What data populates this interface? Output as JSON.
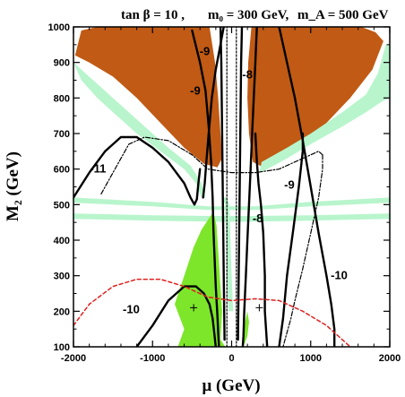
{
  "chart_data": {
    "type": "contour",
    "title": "tan β = 10 ,  m₀ = 300 GeV,  m_A = 500 GeV",
    "title_parts": {
      "tanb": "tan β = 10 ,",
      "m0": "m₀ = 300 GeV,",
      "mA": "m_A = 500 GeV"
    },
    "xlabel": "μ (GeV)",
    "ylabel": "M₂ (GeV)",
    "xlim": [
      -2000,
      2000
    ],
    "ylim": [
      100,
      1000
    ],
    "xticks": [
      -2000,
      -1000,
      0,
      1000,
      2000
    ],
    "xtick_labels": [
      "-2000",
      "-1000",
      "0",
      "1000",
      "2000"
    ],
    "yticks": [
      100,
      200,
      300,
      400,
      500,
      600,
      700,
      800,
      900,
      1000
    ],
    "ytick_labels": [
      "100",
      "200",
      "300",
      "400",
      "500",
      "600",
      "700",
      "800",
      "900",
      "1000"
    ],
    "colors": {
      "excluded_brown": "#c05a14",
      "wmap_lightgreen": "#b8f5cc",
      "bsg_green": "#7de62a",
      "dashed_red": "#e02020",
      "contour_black": "#000000"
    },
    "regions": [
      {
        "name": "brown-left",
        "color": "#c05a14",
        "points": [
          [
            -1980,
            920
          ],
          [
            -1900,
            990
          ],
          [
            -1700,
            1000
          ],
          [
            -280,
            1000
          ],
          [
            -210,
            900
          ],
          [
            -170,
            800
          ],
          [
            -140,
            700
          ],
          [
            -120,
            630
          ],
          [
            -180,
            605
          ],
          [
            -350,
            615
          ],
          [
            -600,
            660
          ],
          [
            -900,
            730
          ],
          [
            -1200,
            800
          ],
          [
            -1500,
            860
          ],
          [
            -1800,
            900
          ]
        ]
      },
      {
        "name": "brown-right",
        "color": "#c05a14",
        "points": [
          [
            250,
            1000
          ],
          [
            1640,
            1000
          ],
          [
            1820,
            985
          ],
          [
            1920,
            960
          ],
          [
            1780,
            880
          ],
          [
            1500,
            800
          ],
          [
            1200,
            730
          ],
          [
            900,
            670
          ],
          [
            600,
            630
          ],
          [
            400,
            605
          ],
          [
            270,
            620
          ],
          [
            220,
            700
          ],
          [
            200,
            800
          ],
          [
            210,
            900
          ]
        ]
      },
      {
        "name": "wmap-left-band",
        "color": "#b8f5cc",
        "points": [
          [
            -2000,
            900
          ],
          [
            -1900,
            850
          ],
          [
            -1700,
            800
          ],
          [
            -1500,
            760
          ],
          [
            -1200,
            700
          ],
          [
            -900,
            650
          ],
          [
            -600,
            600
          ],
          [
            -450,
            560
          ],
          [
            -380,
            520
          ],
          [
            -330,
            520
          ],
          [
            -380,
            560
          ],
          [
            -520,
            610
          ],
          [
            -800,
            660
          ],
          [
            -1100,
            720
          ],
          [
            -1400,
            780
          ],
          [
            -1700,
            840
          ],
          [
            -1900,
            880
          ]
        ]
      },
      {
        "name": "wmap-right-band",
        "color": "#b8f5cc",
        "points": [
          [
            2000,
            800
          ],
          [
            1900,
            790
          ],
          [
            1700,
            760
          ],
          [
            1400,
            720
          ],
          [
            1000,
            670
          ],
          [
            700,
            630
          ],
          [
            450,
            600
          ],
          [
            350,
            590
          ],
          [
            380,
            620
          ],
          [
            700,
            660
          ],
          [
            1000,
            700
          ],
          [
            1400,
            760
          ],
          [
            1700,
            810
          ],
          [
            1850,
            870
          ],
          [
            1950,
            950
          ],
          [
            2000,
            950
          ]
        ]
      },
      {
        "name": "wmap-horizontal-band-1",
        "color": "#b8f5cc",
        "points": [
          [
            -2000,
            475
          ],
          [
            -1000,
            470
          ],
          [
            -200,
            468
          ],
          [
            200,
            468
          ],
          [
            1000,
            470
          ],
          [
            2000,
            475
          ],
          [
            2000,
            460
          ],
          [
            1000,
            455
          ],
          [
            200,
            452
          ],
          [
            -200,
            452
          ],
          [
            -1000,
            455
          ],
          [
            -2000,
            460
          ]
        ]
      },
      {
        "name": "wmap-horizontal-band-2",
        "color": "#b8f5cc",
        "points": [
          [
            -2000,
            520
          ],
          [
            -1000,
            508
          ],
          [
            -300,
            495
          ],
          [
            300,
            495
          ],
          [
            1000,
            508
          ],
          [
            2000,
            520
          ],
          [
            2000,
            505
          ],
          [
            1000,
            495
          ],
          [
            300,
            485
          ],
          [
            -300,
            485
          ],
          [
            -1000,
            495
          ],
          [
            -2000,
            505
          ]
        ]
      },
      {
        "name": "wmap-vertical-band",
        "color": "#b8f5cc",
        "points": [
          [
            -120,
            520
          ],
          [
            -80,
            500
          ],
          [
            -60,
            300
          ],
          [
            -40,
            200
          ],
          [
            20,
            200
          ],
          [
            0,
            300
          ],
          [
            -30,
            500
          ],
          [
            -60,
            520
          ]
        ]
      },
      {
        "name": "bsg-green-region",
        "color": "#7de62a",
        "points": [
          [
            -680,
            100
          ],
          [
            -600,
            150
          ],
          [
            -720,
            220
          ],
          [
            -600,
            300
          ],
          [
            -480,
            380
          ],
          [
            -380,
            430
          ],
          [
            -290,
            460
          ],
          [
            -230,
            480
          ],
          [
            -190,
            440
          ],
          [
            -150,
            300
          ],
          [
            -120,
            200
          ],
          [
            -140,
            120
          ],
          [
            -80,
            100
          ]
        ]
      },
      {
        "name": "bsg-green-sliver",
        "color": "#7de62a",
        "points": [
          [
            150,
            100
          ],
          [
            200,
            130
          ],
          [
            220,
            170
          ],
          [
            200,
            200
          ],
          [
            170,
            170
          ],
          [
            140,
            110
          ]
        ]
      }
    ],
    "series": [
      {
        "name": "-9",
        "style": "solid",
        "points": [
          [
            -500,
            990
          ],
          [
            -400,
            900
          ],
          [
            -330,
            820
          ],
          [
            -290,
            720
          ],
          [
            -260,
            620
          ],
          [
            -240,
            520
          ],
          [
            -230,
            430
          ],
          [
            -215,
            350
          ],
          [
            -200,
            270
          ],
          [
            -180,
            190
          ],
          [
            -170,
            140
          ],
          [
            -160,
            100
          ]
        ]
      },
      {
        "name": "-8",
        "style": "solid",
        "points": [
          [
            320,
            1000
          ],
          [
            300,
            900
          ],
          [
            280,
            800
          ],
          [
            260,
            700
          ],
          [
            240,
            600
          ],
          [
            220,
            500
          ],
          [
            200,
            400
          ],
          [
            180,
            300
          ],
          [
            160,
            200
          ],
          [
            150,
            130
          ],
          [
            140,
            100
          ]
        ]
      },
      {
        "name": "-11",
        "style": "solid",
        "points": [
          [
            -2000,
            520
          ],
          [
            -1800,
            590
          ],
          [
            -1600,
            650
          ],
          [
            -1400,
            690
          ],
          [
            -1200,
            690
          ],
          [
            -1000,
            660
          ],
          [
            -800,
            620
          ],
          [
            -600,
            560
          ],
          [
            -520,
            520
          ],
          [
            -470,
            500
          ],
          [
            -440,
            515
          ],
          [
            -420,
            560
          ],
          [
            -400,
            600
          ]
        ]
      },
      {
        "name": "-10",
        "style": "solid",
        "points": [
          [
            -1200,
            100
          ],
          [
            -1000,
            160
          ],
          [
            -800,
            230
          ],
          [
            -600,
            270
          ],
          [
            -450,
            270
          ],
          [
            -350,
            250
          ],
          [
            -280,
            220
          ],
          [
            -240,
            180
          ],
          [
            -220,
            140
          ],
          [
            -200,
            100
          ]
        ]
      },
      {
        "name": "-10",
        "style": "solid",
        "points": [
          [
            1300,
            100
          ],
          [
            1300,
            150
          ],
          [
            1260,
            220
          ],
          [
            1200,
            300
          ],
          [
            1100,
            420
          ],
          [
            1000,
            550
          ],
          [
            900,
            680
          ],
          [
            800,
            800
          ],
          [
            700,
            900
          ],
          [
            600,
            1000
          ]
        ]
      },
      {
        "name": "-9",
        "style": "solid",
        "points": [
          [
            600,
            100
          ],
          [
            650,
            180
          ],
          [
            700,
            300
          ],
          [
            780,
            430
          ],
          [
            850,
            550
          ],
          [
            900,
            650
          ],
          [
            900,
            700
          ]
        ]
      },
      {
        "name": "-8",
        "style": "solid",
        "points": [
          [
            450,
            100
          ],
          [
            420,
            200
          ],
          [
            420,
            300
          ],
          [
            400,
            420
          ],
          [
            370,
            500
          ],
          [
            340,
            560
          ],
          [
            320,
            620
          ],
          [
            300,
            700
          ]
        ]
      },
      {
        "name": "",
        "style": "solid",
        "points": [
          [
            -360,
            520
          ],
          [
            -340,
            560
          ],
          [
            -320,
            620
          ],
          [
            -290,
            700
          ],
          [
            -250,
            800
          ],
          [
            -200,
            880
          ],
          [
            -150,
            940
          ],
          [
            -100,
            1000
          ]
        ]
      },
      {
        "name": "",
        "style": "solid",
        "points": [
          [
            -90,
            120
          ],
          [
            -100,
            300
          ],
          [
            -110,
            500
          ],
          [
            -120,
            700
          ],
          [
            -130,
            900
          ],
          [
            -140,
            1000
          ]
        ]
      },
      {
        "name": "",
        "style": "solid",
        "points": [
          [
            80,
            120
          ],
          [
            90,
            300
          ],
          [
            100,
            500
          ],
          [
            110,
            700
          ],
          [
            120,
            900
          ],
          [
            130,
            1000
          ]
        ]
      },
      {
        "name": "",
        "style": "dotted",
        "points": [
          [
            -60,
            100
          ],
          [
            -60,
            400
          ],
          [
            -60,
            700
          ],
          [
            -60,
            1000
          ]
        ]
      },
      {
        "name": "",
        "style": "dotted",
        "points": [
          [
            60,
            100
          ],
          [
            60,
            400
          ],
          [
            60,
            700
          ],
          [
            60,
            1000
          ]
        ]
      },
      {
        "name": "",
        "style": "dashdot",
        "points": [
          [
            -1650,
            530
          ],
          [
            -1500,
            590
          ],
          [
            -1300,
            670
          ],
          [
            -1100,
            690
          ],
          [
            -800,
            680
          ],
          [
            -500,
            640
          ],
          [
            -300,
            600
          ],
          [
            0,
            590
          ],
          [
            300,
            590
          ],
          [
            600,
            600
          ],
          [
            800,
            620
          ],
          [
            1000,
            640
          ],
          [
            1100,
            650
          ],
          [
            1150,
            640
          ]
        ]
      },
      {
        "name": "",
        "style": "dashdot",
        "points": [
          [
            1150,
            640
          ],
          [
            1150,
            600
          ],
          [
            1100,
            520
          ],
          [
            1000,
            420
          ],
          [
            900,
            320
          ],
          [
            800,
            230
          ],
          [
            750,
            180
          ],
          [
            700,
            140
          ],
          [
            650,
            100
          ]
        ]
      },
      {
        "name": "",
        "style": "dashed-red",
        "points": [
          [
            -2000,
            160
          ],
          [
            -1800,
            220
          ],
          [
            -1500,
            270
          ],
          [
            -1200,
            290
          ],
          [
            -900,
            290
          ],
          [
            -600,
            270
          ],
          [
            -300,
            240
          ],
          [
            0,
            230
          ],
          [
            300,
            235
          ],
          [
            600,
            230
          ],
          [
            900,
            200
          ],
          [
            1200,
            160
          ],
          [
            1400,
            120
          ],
          [
            1500,
            100
          ]
        ]
      }
    ],
    "labels": [
      {
        "text": "-9",
        "x": -340,
        "y": 920
      },
      {
        "text": "-9",
        "x": -460,
        "y": 810
      },
      {
        "text": "-8",
        "x": 200,
        "y": 855
      },
      {
        "text": "-11",
        "x": -1690,
        "y": 590
      },
      {
        "text": "-10",
        "x": -1270,
        "y": 195
      },
      {
        "text": "-10",
        "x": 1360,
        "y": 290
      },
      {
        "text": "-9",
        "x": 730,
        "y": 545
      },
      {
        "text": "-8",
        "x": 330,
        "y": 450
      }
    ],
    "markers": [
      {
        "x": -480,
        "y": 210
      },
      {
        "x": 350,
        "y": 210
      }
    ],
    "legend": "none",
    "grid": false
  }
}
